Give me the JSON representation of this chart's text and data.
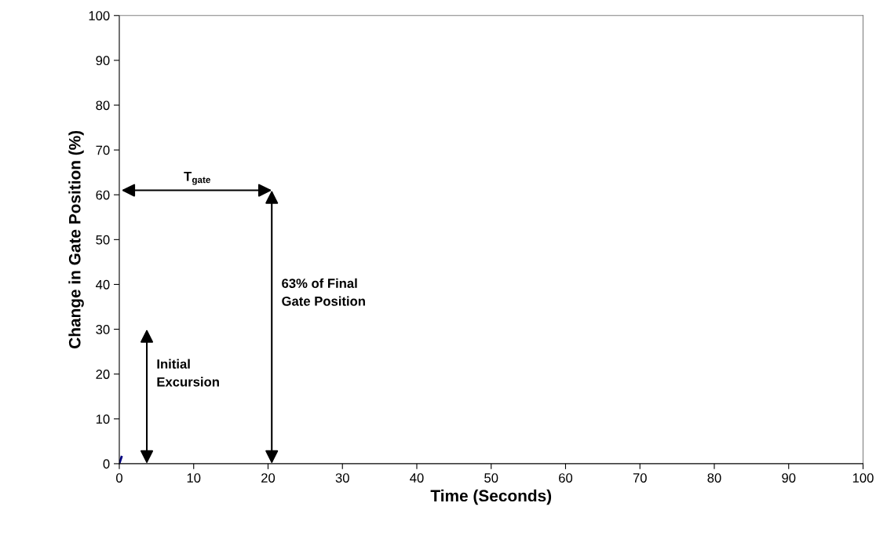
{
  "chart_data": {
    "type": "line",
    "xlabel": "Time (Seconds)",
    "ylabel": "Change in Gate Position (%)",
    "x": [
      0,
      0.3
    ],
    "series": [
      {
        "color": "#000080",
        "values": [
          0,
          1.5
        ]
      }
    ],
    "xlim": [
      0,
      100
    ],
    "ylim": [
      0,
      100
    ],
    "xticks": [
      0,
      10,
      20,
      30,
      40,
      50,
      60,
      70,
      80,
      90,
      100
    ],
    "yticks": [
      0,
      10,
      20,
      30,
      40,
      50,
      60,
      70,
      80,
      90,
      100
    ],
    "grid": false,
    "marker": "none",
    "line_style": "solid",
    "annotations": [
      "T$_{gate}$",
      "63% of Final\nGate Position",
      "Initial\nExcursion"
    ]
  }
}
